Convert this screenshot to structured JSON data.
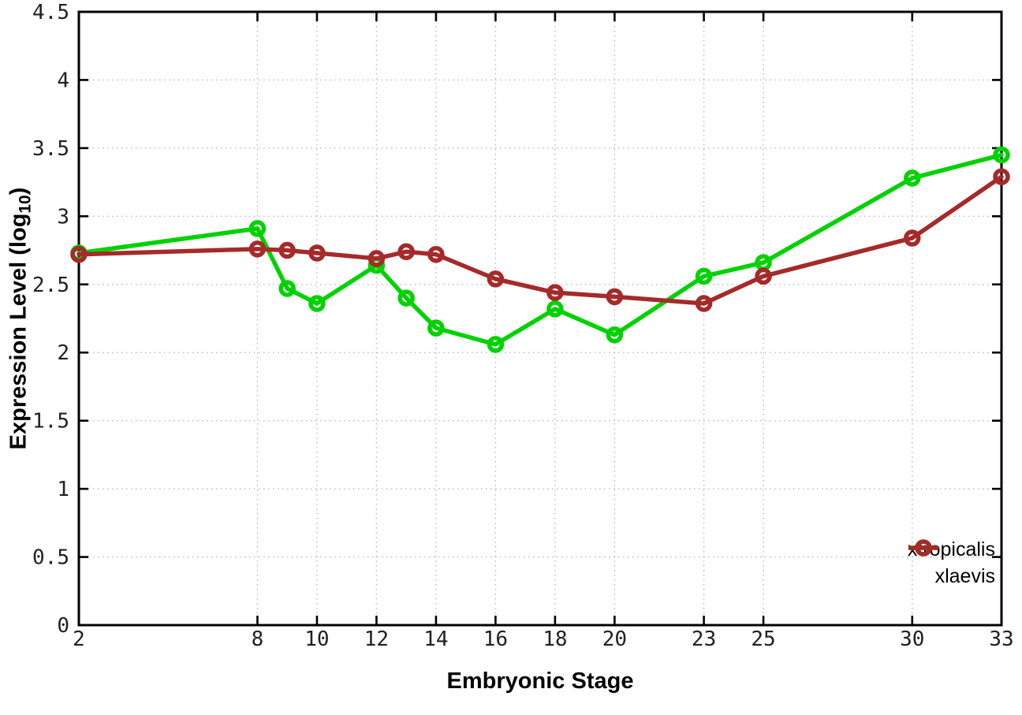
{
  "chart_data": {
    "type": "line",
    "title": "",
    "xlabel": "Embryonic Stage",
    "ylabel": "Expression Level (log10)",
    "ylabel_parts": {
      "prefix": "Expression Level (log",
      "subscript": "10",
      "suffix": ")"
    },
    "x": [
      2,
      8,
      9,
      10,
      12,
      13,
      14,
      16,
      18,
      20,
      23,
      25,
      30,
      33
    ],
    "series": [
      {
        "name": "xtropicalis",
        "color": "#00d200",
        "marker": "open-circle",
        "values": [
          2.73,
          2.91,
          2.47,
          2.36,
          2.64,
          2.4,
          2.18,
          2.06,
          2.32,
          2.13,
          2.56,
          2.66,
          3.28,
          3.45
        ]
      },
      {
        "name": "xlaevis",
        "color": "#a52a2a",
        "marker": "open-circle",
        "values": [
          2.72,
          2.76,
          2.75,
          2.73,
          2.69,
          2.74,
          2.72,
          2.54,
          2.44,
          2.41,
          2.36,
          2.56,
          2.84,
          3.29
        ]
      }
    ],
    "xlim": [
      2,
      33
    ],
    "ylim": [
      0,
      4.5
    ],
    "xticks": [
      2,
      8,
      10,
      12,
      14,
      16,
      18,
      20,
      23,
      25,
      30,
      33
    ],
    "xtick_labels": [
      "2",
      "8",
      "10",
      "12",
      "14",
      "16",
      "18",
      "20",
      "23",
      "25",
      "30",
      "33"
    ],
    "yticks": [
      0,
      0.5,
      1,
      1.5,
      2,
      2.5,
      3,
      3.5,
      4,
      4.5
    ],
    "ytick_labels": [
      "0",
      "0.5",
      "1",
      "1.5",
      "2",
      "2.5",
      "3",
      "3.5",
      "4",
      "4.5"
    ],
    "grid": true,
    "legend": {
      "position": "bottom-right"
    },
    "colors": {
      "background": "#ffffff",
      "grid": "#b9b9b9",
      "axis": "#000000",
      "tick_text": "#212121"
    }
  }
}
